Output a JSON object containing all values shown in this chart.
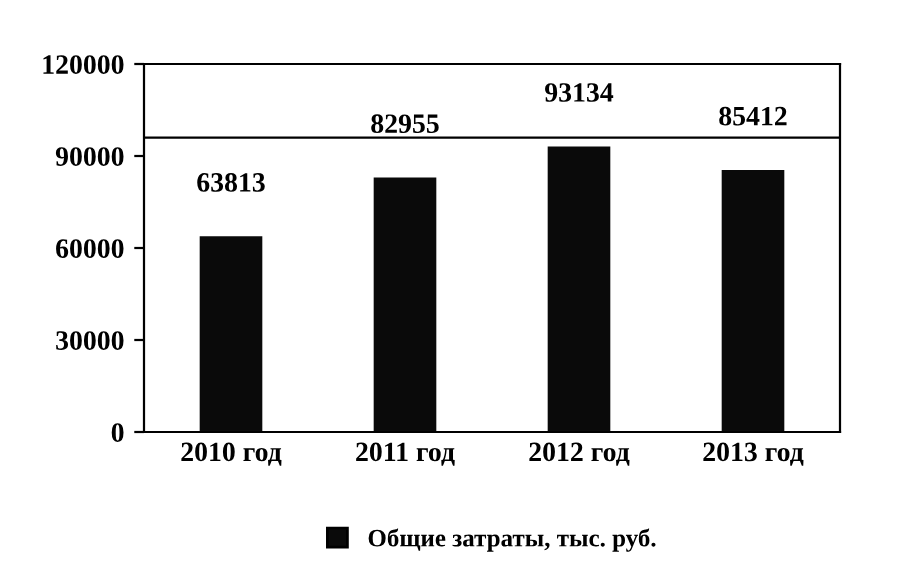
{
  "chart_data": {
    "type": "bar",
    "categories": [
      "2010 год",
      "2011 год",
      "2012 год",
      "2013 год"
    ],
    "series": [
      {
        "name": "Общие затраты, тыс. руб.",
        "color": "#0a0a0a",
        "values": [
          63813,
          82955,
          93134,
          85412
        ]
      }
    ],
    "ylim": [
      0,
      120000
    ],
    "yticks": [
      0,
      30000,
      60000,
      90000,
      120000
    ],
    "ref_lines": [
      {
        "axis": "y",
        "value": 96000,
        "color": "#000000"
      }
    ],
    "data_labels": true,
    "grid": false,
    "legend": "bottom"
  }
}
